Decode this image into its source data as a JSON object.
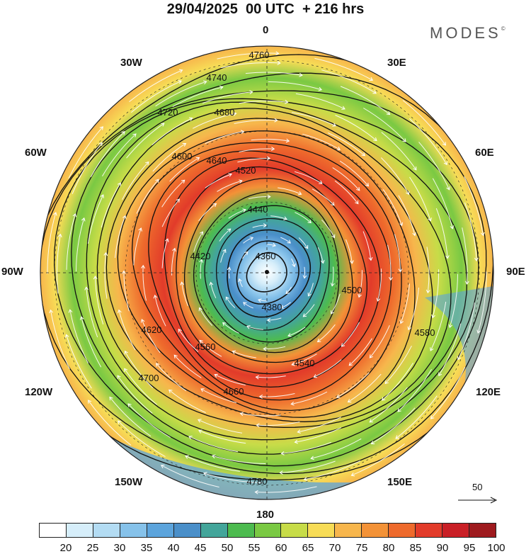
{
  "header": {
    "title": "29/04/2025  00 UTC  + 216 hrs",
    "brand": "MODES",
    "brand_mark": "©"
  },
  "map": {
    "projection": "north-polar-stereographic",
    "longitude_labels": {
      "top": "0",
      "top_right": "30E",
      "right_upper": "60E",
      "right": "90E",
      "right_lower": "120E",
      "bottom_right": "150E",
      "bottom": "180",
      "bottom_left": "150W",
      "left_lower": "120W",
      "left": "90W",
      "left_upper": "60W",
      "top_left": "30W"
    },
    "contour_labels": [
      "4760",
      "4740",
      "4720",
      "4680",
      "4640",
      "4600",
      "4520",
      "4440",
      "4360",
      "4780",
      "4660",
      "4540",
      "4560",
      "4580",
      "4620",
      "4700",
      "4500",
      "4420",
      "4380"
    ],
    "reference_vector_label": "50"
  },
  "colorbar": {
    "colors": [
      "#ffffff",
      "#d6eefa",
      "#b3dcf3",
      "#86c2ea",
      "#5ca4dc",
      "#4a8fc9",
      "#43a59a",
      "#4dbb4f",
      "#7ac943",
      "#c7dc48",
      "#f7dc56",
      "#f7b64c",
      "#f39237",
      "#ee6a2c",
      "#e23b2a",
      "#c91f26",
      "#9e1a1e"
    ],
    "labels": [
      "20",
      "25",
      "30",
      "35",
      "40",
      "45",
      "50",
      "55",
      "60",
      "65",
      "70",
      "75",
      "80",
      "85",
      "90",
      "95",
      "100"
    ]
  }
}
